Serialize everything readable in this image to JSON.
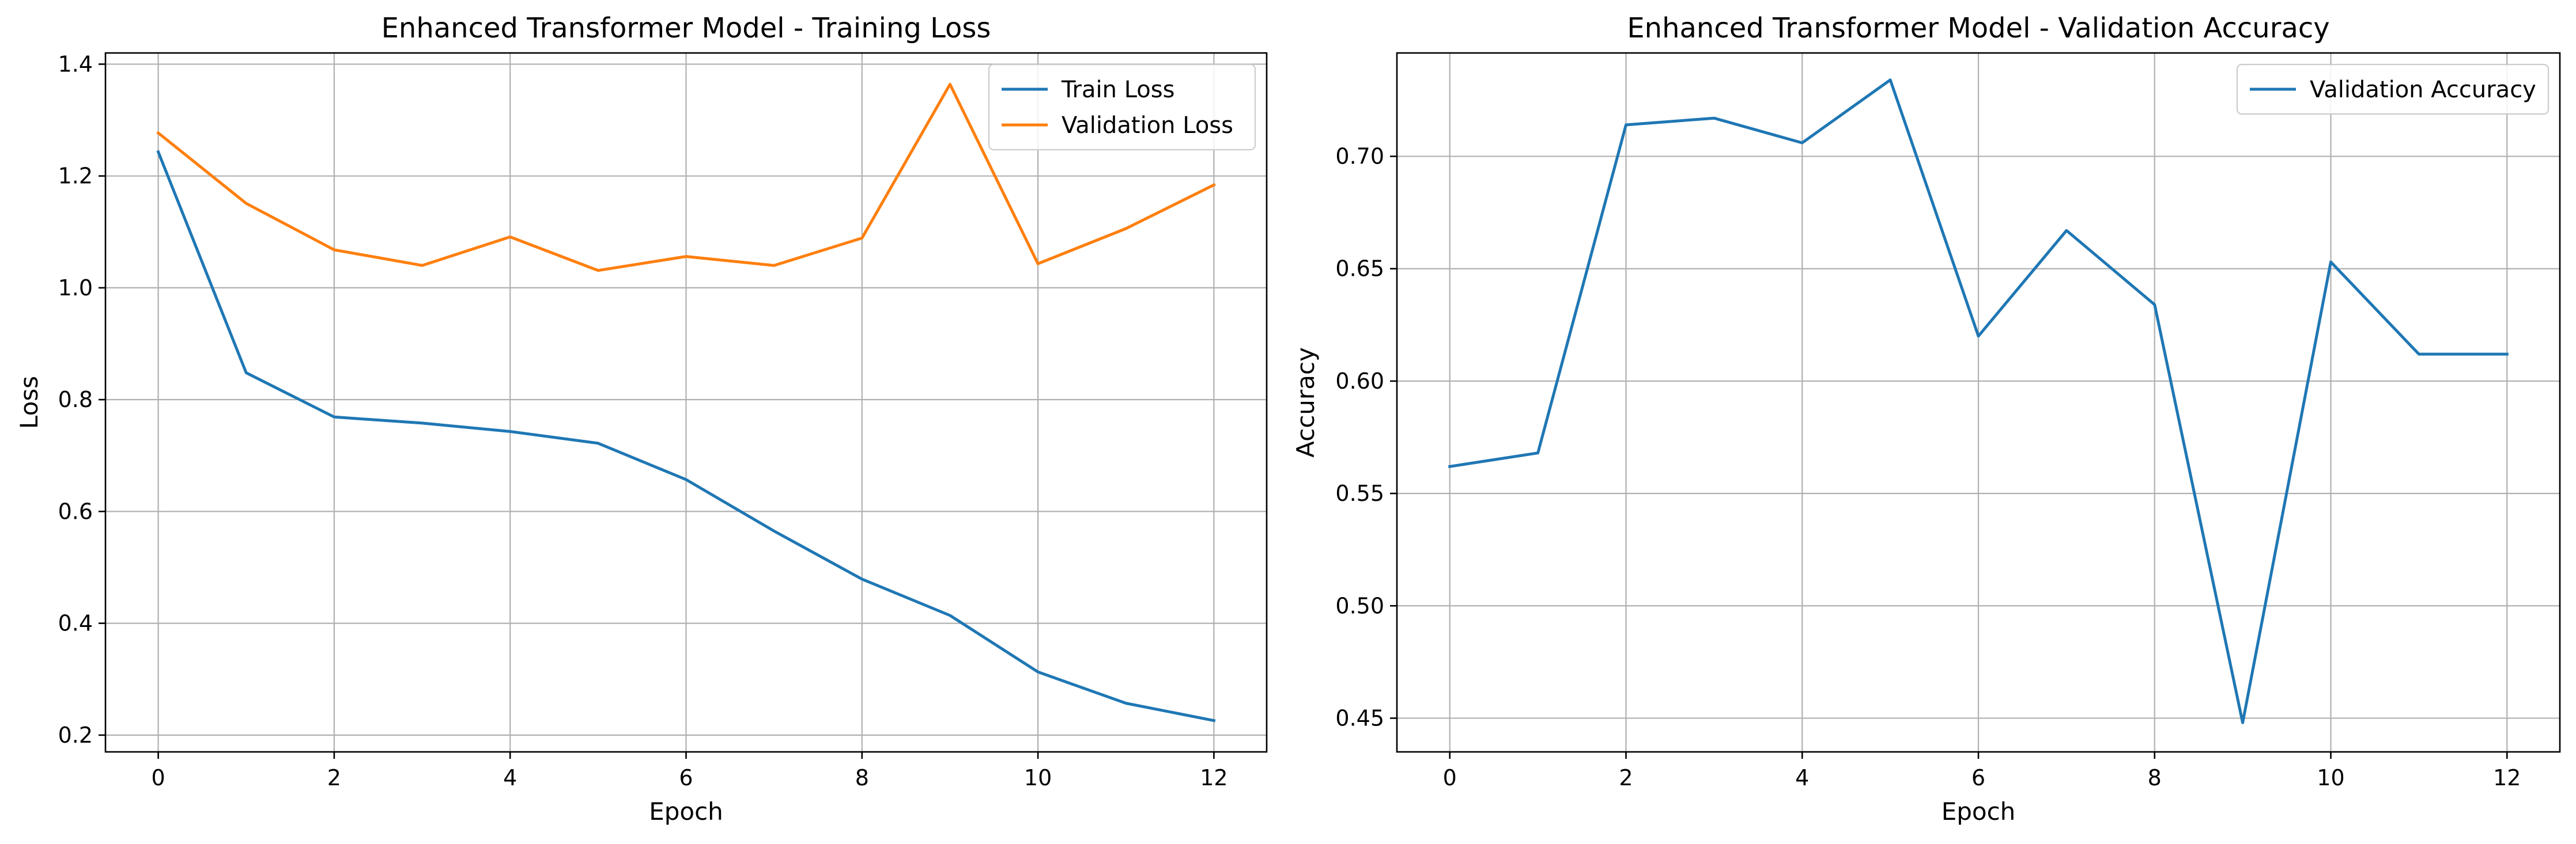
{
  "chart_data": [
    {
      "type": "line",
      "title": "Enhanced Transformer Model - Training Loss",
      "xlabel": "Epoch",
      "ylabel": "Loss",
      "xlim": [
        -0.6,
        12.6
      ],
      "ylim": [
        0.17,
        1.42
      ],
      "xticks": [
        0,
        2,
        4,
        6,
        8,
        10,
        12
      ],
      "xtick_labels": [
        "0",
        "2",
        "4",
        "6",
        "8",
        "10",
        "12"
      ],
      "yticks": [
        0.2,
        0.4,
        0.6,
        0.8,
        1.0,
        1.2,
        1.4
      ],
      "ytick_labels": [
        "0.2",
        "0.4",
        "0.6",
        "0.8",
        "1.0",
        "1.2",
        "1.4"
      ],
      "grid": true,
      "legend_position": "top-right",
      "x": [
        0,
        1,
        2,
        3,
        4,
        5,
        6,
        7,
        8,
        9,
        10,
        11,
        12
      ],
      "series": [
        {
          "name": "Train Loss",
          "color": "#1f77b4",
          "values": [
            1.243,
            0.848,
            0.769,
            0.758,
            0.743,
            0.722,
            0.657,
            0.565,
            0.479,
            0.414,
            0.313,
            0.257,
            0.226
          ]
        },
        {
          "name": "Validation Loss",
          "color": "#ff7f0e",
          "values": [
            1.277,
            1.151,
            1.068,
            1.04,
            1.091,
            1.031,
            1.056,
            1.04,
            1.089,
            1.364,
            1.043,
            1.106,
            1.184
          ]
        }
      ]
    },
    {
      "type": "line",
      "title": "Enhanced Transformer Model - Validation Accuracy",
      "xlabel": "Epoch",
      "ylabel": "Accuracy",
      "xlim": [
        -0.6,
        12.6
      ],
      "ylim": [
        0.435,
        0.746
      ],
      "xticks": [
        0,
        2,
        4,
        6,
        8,
        10,
        12
      ],
      "xtick_labels": [
        "0",
        "2",
        "4",
        "6",
        "8",
        "10",
        "12"
      ],
      "yticks": [
        0.45,
        0.5,
        0.55,
        0.6,
        0.65,
        0.7
      ],
      "ytick_labels": [
        "0.45",
        "0.50",
        "0.55",
        "0.60",
        "0.65",
        "0.70"
      ],
      "grid": true,
      "legend_position": "top-right",
      "x": [
        0,
        1,
        2,
        3,
        4,
        5,
        6,
        7,
        8,
        9,
        10,
        11,
        12
      ],
      "series": [
        {
          "name": "Validation Accuracy",
          "color": "#1f77b4",
          "values": [
            0.562,
            0.568,
            0.714,
            0.717,
            0.706,
            0.734,
            0.62,
            0.667,
            0.634,
            0.448,
            0.653,
            0.612,
            0.612
          ]
        }
      ]
    }
  ]
}
